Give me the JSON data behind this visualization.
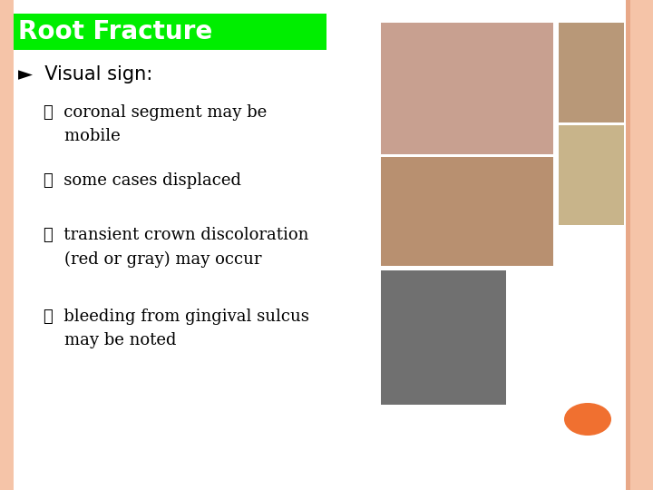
{
  "bg_color": "#ffffff",
  "border_left_color": "#f5c4a8",
  "border_right_colors": [
    "#f5c4a8",
    "#f0b090",
    "#fce0d0"
  ],
  "title": "Root Fracture",
  "title_bg_color": "#00ee00",
  "title_text_color": "#ffffff",
  "title_fontsize": 20,
  "main_bullet": "►  Visual sign:",
  "main_bullet_fontsize": 15,
  "sub_bullets": [
    "✓  coronal segment may be\n    mobile",
    "✓  some cases displaced",
    "✓  transient crown discoloration\n    (red or gray) may occur",
    "✓  bleeding from gingival sulcus\n    may be noted"
  ],
  "sub_bullet_fontsize": 13,
  "orange_ellipse_color": "#f07030",
  "img1_color": "#c8a090",
  "img2_color": "#b89878",
  "img3_color": "#b89070",
  "img4_color": "#c8b48a",
  "img5_color": "#707070"
}
